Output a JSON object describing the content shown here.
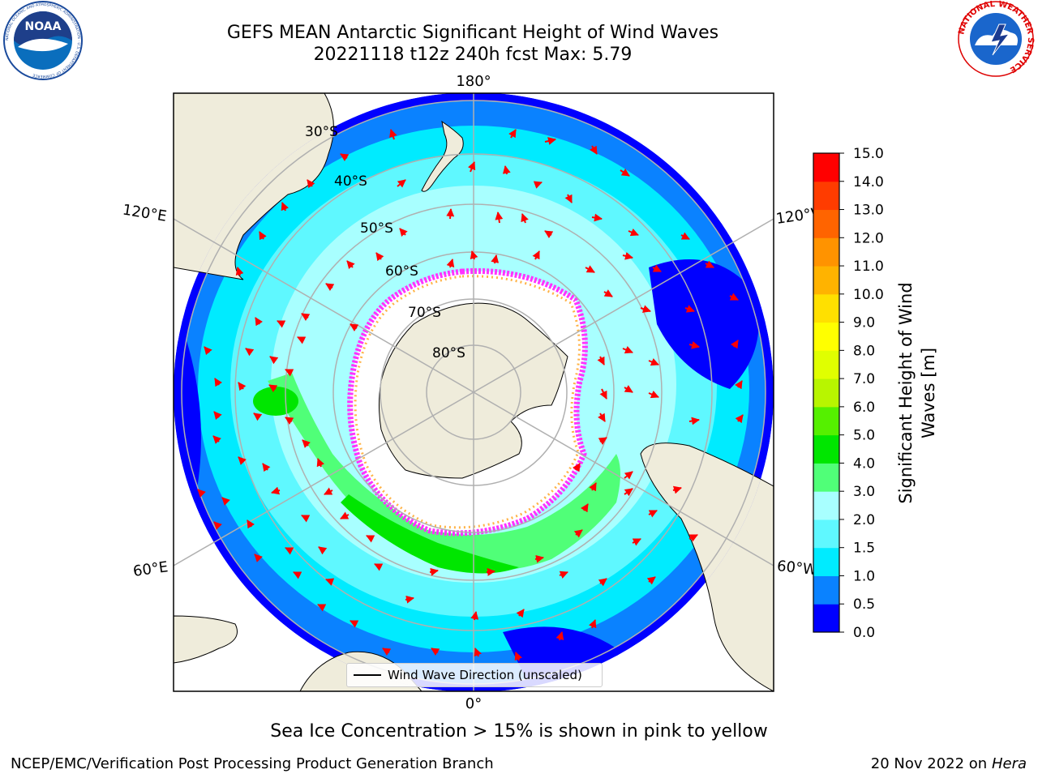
{
  "title": {
    "line1": "GEFS MEAN Antarctic Significant Height of Wind Waves",
    "line2": "20221118 t12z 240h fcst   Max: 5.79"
  },
  "logos": {
    "left": {
      "icon": "noaa-logo",
      "text": "NOAA",
      "ring_text": "NATIONAL OCEANIC AND ATMOSPHERIC ADMINISTRATION · U.S. DEPARTMENT OF COMMERCE"
    },
    "right": {
      "icon": "nws-logo",
      "ring_text": "NATIONAL WEATHER SERVICE"
    }
  },
  "map": {
    "projection": "south-polar-stereographic",
    "lon_labels": {
      "top": "180°",
      "bottom": "0°",
      "left_upper": "120°E",
      "left_lower": "60°E",
      "right_upper": "120°W",
      "right_lower": "60°W"
    },
    "lat_labels": [
      "30°S",
      "40°S",
      "50°S",
      "60°S",
      "70°S",
      "80°S"
    ],
    "legend": "Wind Wave Direction (unscaled)",
    "colors": {
      "land": "#efecdb",
      "sea_ice": "#ffffff",
      "ice_edge": "#ff33ff",
      "arrow": "#ff0000",
      "grid": "#b0b0b0"
    }
  },
  "colorbar": {
    "label_line1": "Significant Height of Wind",
    "label_line2": "Waves [m]",
    "ticks": [
      "0.0",
      "0.5",
      "1.0",
      "1.5",
      "2.0",
      "3.0",
      "4.0",
      "5.0",
      "6.0",
      "7.0",
      "8.0",
      "9.0",
      "10.0",
      "11.0",
      "12.0",
      "13.0",
      "14.0",
      "15.0"
    ],
    "colors": [
      "#0000ff",
      "#0a82ff",
      "#00ebff",
      "#5ff8ff",
      "#a8ffff",
      "#50ff78",
      "#00e600",
      "#55f000",
      "#b8f500",
      "#e0ff00",
      "#ffff00",
      "#ffe000",
      "#ffb300",
      "#ff9300",
      "#ff6400",
      "#ff3c00",
      "#ff0000"
    ]
  },
  "caption": "Sea Ice Concentration > 15% is shown in pink to yellow",
  "footer": {
    "left": "NCEP/EMC/Verification Post Processing Product Generation Branch",
    "right_prefix": "20 Nov 2022 on",
    "right_host": "Hera"
  }
}
